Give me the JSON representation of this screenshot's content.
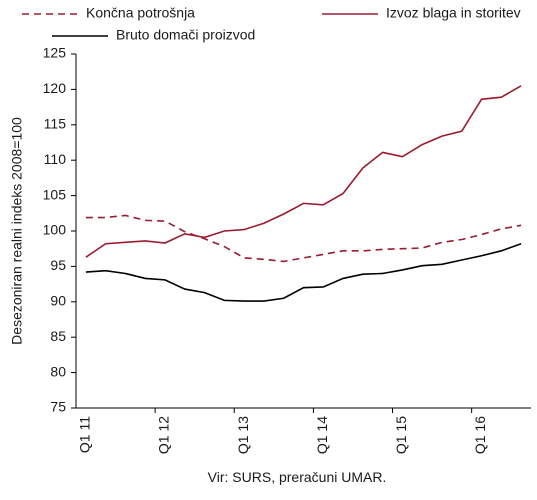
{
  "chart_data": {
    "type": "line",
    "y_label": "Desezoniran realni indeks 2008=100",
    "source": "Vir: SURS, preračuni UMAR.",
    "categories": [
      "Q1 11",
      null,
      null,
      null,
      "Q1 12",
      null,
      null,
      null,
      "Q1 13",
      null,
      null,
      null,
      "Q1 14",
      null,
      null,
      null,
      "Q1 15",
      null,
      null,
      null,
      "Q1 16",
      null,
      null
    ],
    "series": [
      {
        "name": "Končna potrošnja",
        "color": "#9b1b30",
        "dashed": true,
        "values": [
          101.9,
          101.9,
          102.2,
          101.5,
          101.4,
          99.9,
          98.9,
          97.8,
          96.2,
          96.0,
          95.7,
          96.2,
          96.7,
          97.2,
          97.2,
          97.4,
          97.5,
          97.6,
          98.4,
          98.8,
          99.5,
          100.3,
          100.8
        ]
      },
      {
        "name": "Izvoz blaga in storitev",
        "color": "#9b1b30",
        "dashed": false,
        "values": [
          96.3,
          98.2,
          98.4,
          98.6,
          98.3,
          99.6,
          99.1,
          100.0,
          100.2,
          101.1,
          102.4,
          103.9,
          103.7,
          105.3,
          108.9,
          111.1,
          110.5,
          112.2,
          113.4,
          114.1,
          118.6,
          118.9,
          120.5
        ]
      },
      {
        "name": "Bruto domači proizvod",
        "color": "#000000",
        "dashed": false,
        "values": [
          94.2,
          94.4,
          94.0,
          93.3,
          93.1,
          91.8,
          91.3,
          90.2,
          90.1,
          90.1,
          90.5,
          92.0,
          92.1,
          93.3,
          93.9,
          94.0,
          94.5,
          95.1,
          95.3,
          95.9,
          96.5,
          97.2,
          98.2
        ]
      }
    ],
    "ylim": [
      75,
      125
    ],
    "yticks": [
      75,
      80,
      85,
      90,
      95,
      100,
      105,
      110,
      115,
      120,
      125
    ],
    "grid": false
  }
}
